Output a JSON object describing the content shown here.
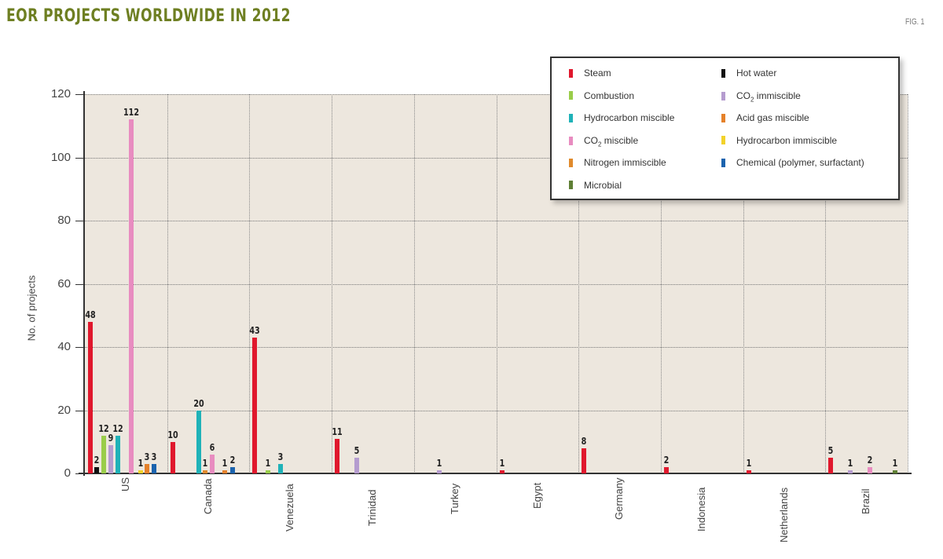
{
  "header": {
    "title": "EOR PROJECTS WORLDWIDE IN 2012",
    "figure_label": "FIG. 1"
  },
  "colors": {
    "Steam": "#e0182d",
    "Hot water": "#111111",
    "Combustion": "#9acd4a",
    "CO2 immiscible": "#b59ccf",
    "Hydrocarbon miscible": "#1fb2b8",
    "Acid gas miscible": "#e5812a",
    "CO2 miscible": "#e88cc0",
    "Hydrocarbon immiscible": "#f2d22a",
    "Nitrogen immiscible": "#e08a2c",
    "Chemical (polymer, surfactant)": "#1b63ae",
    "Microbial": "#5f7f35",
    "plot_bg": "#ede7de",
    "title": "#6e7f22"
  },
  "legend": {
    "items": [
      {
        "label": "Steam",
        "color": "#e0182d",
        "col": 0,
        "row": 0
      },
      {
        "label": "Combustion",
        "color": "#9acd4a",
        "col": 0,
        "row": 1
      },
      {
        "label": "Hydrocarbon miscible",
        "color": "#1fb2b8",
        "col": 0,
        "row": 2
      },
      {
        "label": "CO2 miscible",
        "color": "#e88cc0",
        "col": 0,
        "row": 3
      },
      {
        "label": "Nitrogen immiscible",
        "color": "#e08a2c",
        "col": 0,
        "row": 4
      },
      {
        "label": "Microbial",
        "color": "#5f7f35",
        "col": 0,
        "row": 5
      },
      {
        "label": "Hot water",
        "color": "#111111",
        "col": 1,
        "row": 0
      },
      {
        "label": "CO2 immiscible",
        "color": "#b59ccf",
        "col": 1,
        "row": 1
      },
      {
        "label": "Acid gas miscible",
        "color": "#e5812a",
        "col": 1,
        "row": 2
      },
      {
        "label": "Hydrocarbon immiscible",
        "color": "#f2d22a",
        "col": 1,
        "row": 3
      },
      {
        "label": "Chemical (polymer, surfactant)",
        "color": "#1b63ae",
        "col": 1,
        "row": 4
      }
    ]
  },
  "axes": {
    "y_title": "No. of projects",
    "y_ticks": [
      "0",
      "20",
      "40",
      "60",
      "80",
      "100",
      "120"
    ]
  },
  "chart_data": {
    "type": "bar",
    "title": "EOR PROJECTS WORLDWIDE IN 2012",
    "xlabel": "",
    "ylabel": "No. of projects",
    "ylim": [
      0,
      120
    ],
    "y_ticks": [
      0,
      20,
      40,
      60,
      80,
      100,
      120
    ],
    "grid": true,
    "legend_position": "top-right",
    "categories": [
      "US",
      "Canada",
      "Venezuela",
      "Trinidad",
      "Turkey",
      "Egypt",
      "Germany",
      "Indonesia",
      "Netherlands",
      "Brazil"
    ],
    "groups": [
      {
        "category": "US",
        "bars": [
          {
            "series": "Steam",
            "value": 48,
            "offset": 0
          },
          {
            "series": "Hot water",
            "value": 2,
            "offset": 8
          },
          {
            "series": "Combustion",
            "value": 12,
            "offset": 17
          },
          {
            "series": "CO2 immiscible",
            "value": 9,
            "offset": 26
          },
          {
            "series": "Hydrocarbon miscible",
            "value": 12,
            "offset": 35
          },
          {
            "series": "CO2 miscible",
            "value": 112,
            "offset": 52
          },
          {
            "series": "Hydrocarbon immiscible",
            "value": 1,
            "offset": 64
          },
          {
            "series": "Acid gas miscible",
            "value": 3,
            "offset": 72
          },
          {
            "series": "Chemical (polymer, surfactant)",
            "value": 3,
            "offset": 81
          }
        ]
      },
      {
        "category": "Canada",
        "bars": [
          {
            "series": "Steam",
            "value": 10,
            "offset": 0
          },
          {
            "series": "Hydrocarbon miscible",
            "value": 20,
            "offset": 33
          },
          {
            "series": "Nitrogen immiscible",
            "value": 1,
            "offset": 41
          },
          {
            "series": "CO2 miscible",
            "value": 6,
            "offset": 50
          },
          {
            "series": "Acid gas miscible",
            "value": 1,
            "offset": 66
          },
          {
            "series": "Chemical (polymer, surfactant)",
            "value": 2,
            "offset": 76
          }
        ]
      },
      {
        "category": "Venezuela",
        "bars": [
          {
            "series": "Steam",
            "value": 43,
            "offset": 0
          },
          {
            "series": "Combustion",
            "value": 1,
            "offset": 17
          },
          {
            "series": "Hydrocarbon miscible",
            "value": 3,
            "offset": 33
          }
        ]
      },
      {
        "category": "Trinidad",
        "bars": [
          {
            "series": "Steam",
            "value": 11,
            "offset": 0
          },
          {
            "series": "CO2 immiscible",
            "value": 5,
            "offset": 25
          }
        ]
      },
      {
        "category": "Turkey",
        "bars": [
          {
            "series": "CO2 immiscible",
            "value": 1,
            "offset": 25
          }
        ]
      },
      {
        "category": "Egypt",
        "bars": [
          {
            "series": "Steam",
            "value": 1,
            "offset": 0
          }
        ]
      },
      {
        "category": "Germany",
        "bars": [
          {
            "series": "Steam",
            "value": 8,
            "offset": 0
          }
        ]
      },
      {
        "category": "Indonesia",
        "bars": [
          {
            "series": "Steam",
            "value": 2,
            "offset": 0
          }
        ]
      },
      {
        "category": "Netherlands",
        "bars": [
          {
            "series": "Steam",
            "value": 1,
            "offset": 0
          }
        ]
      },
      {
        "category": "Brazil",
        "bars": [
          {
            "series": "Steam",
            "value": 5,
            "offset": 0
          },
          {
            "series": "CO2 immiscible",
            "value": 1,
            "offset": 25
          },
          {
            "series": "CO2 miscible",
            "value": 2,
            "offset": 50
          },
          {
            "series": "Microbial",
            "value": 1,
            "offset": 82
          }
        ]
      }
    ],
    "series": [
      {
        "name": "Steam",
        "values": [
          48,
          10,
          43,
          11,
          0,
          1,
          8,
          2,
          1,
          5
        ]
      },
      {
        "name": "Hot water",
        "values": [
          2,
          0,
          0,
          0,
          0,
          0,
          0,
          0,
          0,
          0
        ]
      },
      {
        "name": "Combustion",
        "values": [
          12,
          0,
          1,
          0,
          0,
          0,
          0,
          0,
          0,
          0
        ]
      },
      {
        "name": "CO2 immiscible",
        "values": [
          9,
          0,
          0,
          5,
          1,
          0,
          0,
          0,
          0,
          1
        ]
      },
      {
        "name": "Hydrocarbon miscible",
        "values": [
          12,
          20,
          3,
          0,
          0,
          0,
          0,
          0,
          0,
          0
        ]
      },
      {
        "name": "Acid gas miscible",
        "values": [
          3,
          1,
          0,
          0,
          0,
          0,
          0,
          0,
          0,
          0
        ]
      },
      {
        "name": "CO2 miscible",
        "values": [
          112,
          6,
          0,
          0,
          0,
          0,
          0,
          0,
          0,
          2
        ]
      },
      {
        "name": "Hydrocarbon immiscible",
        "values": [
          1,
          0,
          0,
          0,
          0,
          0,
          0,
          0,
          0,
          0
        ]
      },
      {
        "name": "Nitrogen immiscible",
        "values": [
          0,
          1,
          0,
          0,
          0,
          0,
          0,
          0,
          0,
          0
        ]
      },
      {
        "name": "Chemical (polymer, surfactant)",
        "values": [
          3,
          2,
          0,
          0,
          0,
          0,
          0,
          0,
          0,
          0
        ]
      },
      {
        "name": "Microbial",
        "values": [
          0,
          0,
          0,
          0,
          0,
          0,
          0,
          0,
          0,
          1
        ]
      }
    ]
  }
}
